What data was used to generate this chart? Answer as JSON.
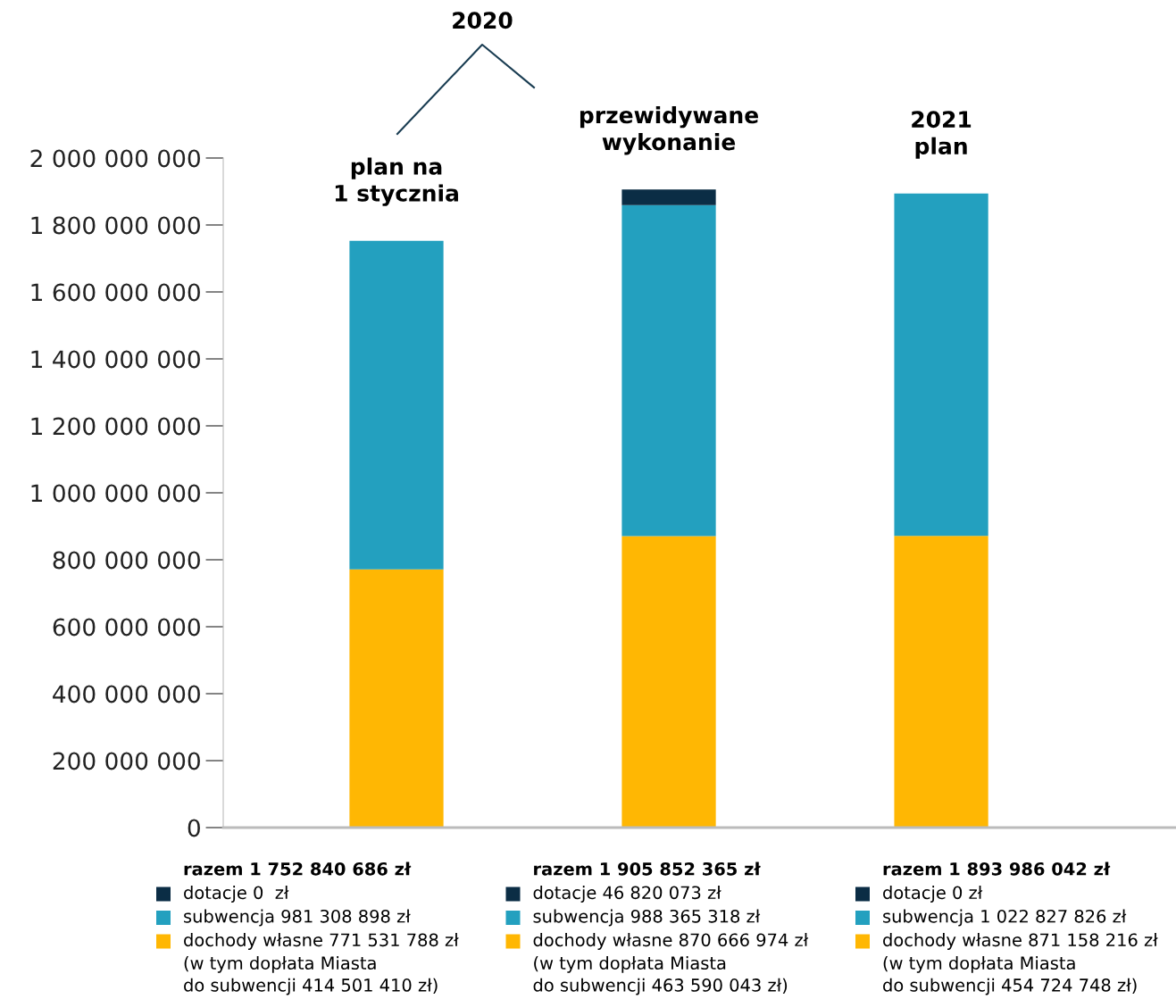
{
  "chart_data": {
    "type": "bar",
    "stacked": true,
    "categories": [
      "plan na\n1 stycznia",
      "przewidywane\nwykonanie",
      "2021\nplan"
    ],
    "series": [
      {
        "color": "#ffb703",
        "values": [
          771531788,
          870666974,
          871158216
        ]
      },
      {
        "color": "#23a0bf",
        "values": [
          981308898,
          988365318,
          1022827826
        ]
      },
      {
        "color": "#0b2d45",
        "values": [
          0,
          46820073,
          0
        ]
      }
    ],
    "ylim": [
      0,
      2000000000
    ],
    "yticks": [
      0,
      {
        "value": 200000000,
        "label": "200 000 000"
      },
      {
        "value": 400000000,
        "label": "400 000 000"
      },
      {
        "value": 600000000,
        "label": "600 000 000"
      },
      {
        "value": 800000000,
        "label": "800 000 000"
      },
      {
        "value": 1000000000,
        "label": "1 000 000 000"
      },
      {
        "value": 1200000000,
        "label": "1 200 000 000"
      },
      {
        "value": 1400000000,
        "label": "1 400 000 000"
      },
      {
        "value": 1600000000,
        "label": "1 600 000 000"
      },
      {
        "value": 1800000000,
        "label": "1 800 000 000"
      },
      {
        "value": 2000000000,
        "label": "2 000 000 000"
      }
    ],
    "tick_labels": "y",
    "grid": false,
    "annotations": [
      "2020",
      "razem 1 752 840 686 zł",
      "dotacje 0  zł",
      "subwencja 981 308 898 zł",
      "dochody własne 771 531 788 zł",
      "(w tym dopłata Miasta\ndo subwencji 414 501 410 zł)",
      "razem 1 905 852 365 zł",
      "dotacje 46 820 073 zł",
      "subwencja 988 365 318 zł",
      "dochody własne 870 666 974 zł",
      "(w tym dopłata Miasta\ndo subwencji 463 590 043 zł)",
      "razem 1 893 986 042 zł",
      "dotacje 0 zł",
      "subwencja 1 022 827 826 zł",
      "dochody własne 871 158 216 zł",
      "(w tym dopłata Miasta\ndo subwencji 454 724 748 zł)"
    ]
  }
}
